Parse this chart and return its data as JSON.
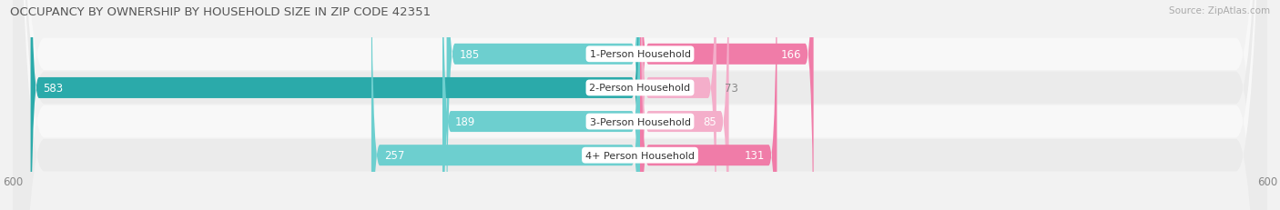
{
  "title": "OCCUPANCY BY OWNERSHIP BY HOUSEHOLD SIZE IN ZIP CODE 42351",
  "source": "Source: ZipAtlas.com",
  "categories": [
    "1-Person Household",
    "2-Person Household",
    "3-Person Household",
    "4+ Person Household"
  ],
  "owner_values": [
    185,
    583,
    189,
    257
  ],
  "renter_values": [
    166,
    73,
    85,
    131
  ],
  "owner_colors": [
    "#6DCFCF",
    "#2BAAAA",
    "#6DCFCF",
    "#6DCFCF"
  ],
  "renter_colors": [
    "#F07CA8",
    "#F4AECA",
    "#F4AECA",
    "#F07CA8"
  ],
  "label_dark": "#888888",
  "label_white": "#ffffff",
  "axis_max": 600,
  "background_color": "#f2f2f2",
  "row_bg_light": "#f8f8f8",
  "row_bg_dark": "#ebebeb",
  "title_fontsize": 9.5,
  "source_fontsize": 7.5,
  "tick_fontsize": 8.5,
  "bar_label_fontsize": 8.5,
  "category_label_fontsize": 8,
  "legend_fontsize": 8.5,
  "bar_height": 0.62
}
